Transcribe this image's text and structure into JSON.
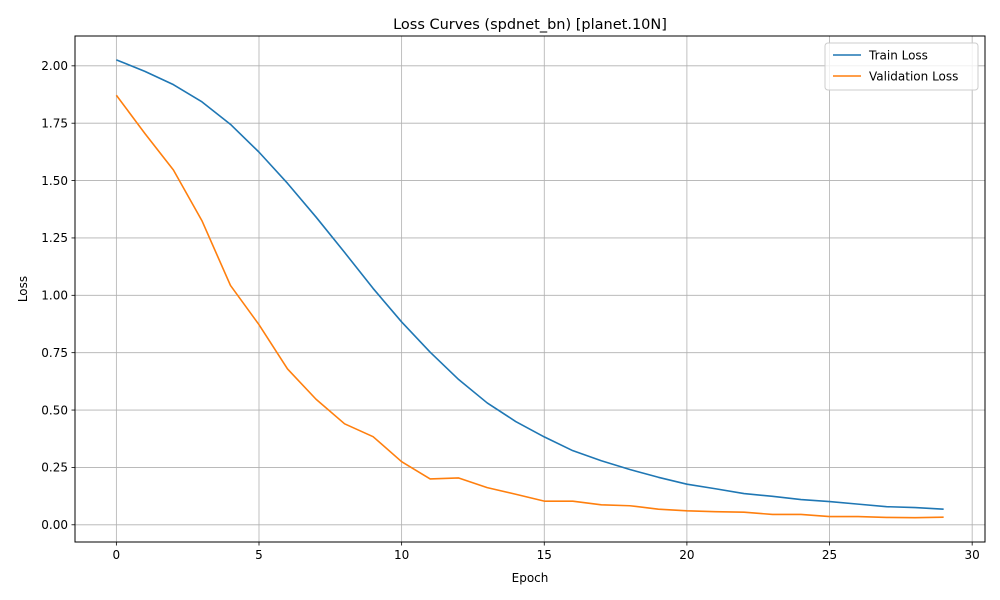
{
  "chart_data": {
    "type": "line",
    "title": "Loss Curves (spdnet_bn) [planet.10N]",
    "xlabel": "Epoch",
    "ylabel": "Loss",
    "xlim": [
      -1.45,
      30.45
    ],
    "ylim": [
      -0.075,
      2.13
    ],
    "xticks": [
      0,
      5,
      10,
      15,
      20,
      25,
      30
    ],
    "xtick_labels": [
      "0",
      "5",
      "10",
      "15",
      "20",
      "25",
      "30"
    ],
    "yticks": [
      0.0,
      0.25,
      0.5,
      0.75,
      1.0,
      1.25,
      1.5,
      1.75,
      2.0
    ],
    "ytick_labels": [
      "0.00",
      "0.25",
      "0.50",
      "0.75",
      "1.00",
      "1.25",
      "1.50",
      "1.75",
      "2.00"
    ],
    "grid": true,
    "legend_position": "top-right",
    "x": [
      0,
      1,
      2,
      3,
      4,
      5,
      6,
      7,
      8,
      9,
      10,
      11,
      12,
      13,
      14,
      15,
      16,
      17,
      18,
      19,
      20,
      21,
      22,
      23,
      24,
      25,
      26,
      27,
      28,
      29
    ],
    "series": [
      {
        "name": "Train Loss",
        "color": "#1f77b4",
        "values": [
          2.026,
          1.976,
          1.918,
          1.843,
          1.745,
          1.624,
          1.488,
          1.341,
          1.187,
          1.03,
          0.884,
          0.752,
          0.633,
          0.531,
          0.45,
          0.383,
          0.323,
          0.279,
          0.241,
          0.207,
          0.177,
          0.157,
          0.136,
          0.124,
          0.11,
          0.101,
          0.09,
          0.079,
          0.075,
          0.068
        ]
      },
      {
        "name": "Validation Loss",
        "color": "#ff7f0e",
        "values": [
          1.872,
          1.705,
          1.546,
          1.325,
          1.043,
          0.872,
          0.679,
          0.547,
          0.44,
          0.384,
          0.275,
          0.2,
          0.204,
          0.162,
          0.133,
          0.103,
          0.103,
          0.087,
          0.083,
          0.068,
          0.061,
          0.057,
          0.055,
          0.045,
          0.045,
          0.036,
          0.036,
          0.032,
          0.031,
          0.033
        ]
      }
    ]
  }
}
